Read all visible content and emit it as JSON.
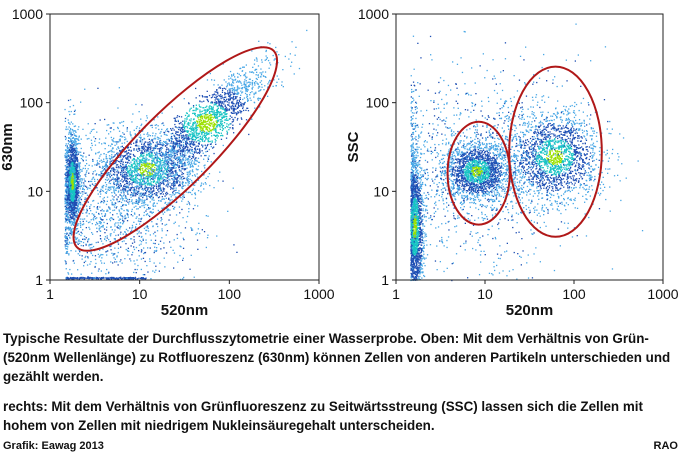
{
  "chart_data": [
    {
      "type": "scatter",
      "title": "",
      "xlabel": "520nm",
      "ylabel": "630nm",
      "xscale": "log",
      "yscale": "log",
      "xlim": [
        1,
        1000
      ],
      "ylim": [
        1,
        1000
      ],
      "xticks": [
        "1",
        "10",
        "100",
        "1000"
      ],
      "yticks": [
        "1",
        "10",
        "100",
        "1000"
      ],
      "clusters": [
        {
          "center": [
            1.75,
            13
          ],
          "spread": [
            0.04,
            0.28
          ],
          "density": "very high"
        },
        {
          "center": [
            12,
            18
          ],
          "spread": [
            0.28,
            0.22
          ],
          "density": "high"
        },
        {
          "center": [
            55,
            60
          ],
          "spread": [
            0.32,
            0.28
          ],
          "density": "high",
          "correlated": true
        },
        {
          "center": [
            5,
            6
          ],
          "spread": [
            0.45,
            0.45
          ],
          "density": "low background"
        }
      ],
      "ellipses": [
        {
          "center": [
            25,
            30
          ],
          "semi_axes_decades": [
            1.55,
            0.42
          ],
          "angle_deg": 45,
          "color": "#b01818"
        }
      ]
    },
    {
      "type": "scatter",
      "title": "",
      "xlabel": "520nm",
      "ylabel": "SSC",
      "xscale": "log",
      "yscale": "log",
      "xlim": [
        1,
        1000
      ],
      "ylim": [
        1,
        1000
      ],
      "xticks": [
        "1",
        "10",
        "100",
        "1000"
      ],
      "yticks": [
        "1",
        "10",
        "100",
        "1000"
      ],
      "clusters": [
        {
          "center": [
            8,
            17
          ],
          "spread": [
            0.18,
            0.16
          ],
          "density": "high"
        },
        {
          "center": [
            60,
            25
          ],
          "spread": [
            0.26,
            0.25
          ],
          "density": "high"
        },
        {
          "center": [
            1.6,
            4
          ],
          "spread": [
            0.05,
            0.4
          ],
          "density": "high"
        },
        {
          "center": [
            8,
            20
          ],
          "spread": [
            0.6,
            0.55
          ],
          "density": "low background"
        }
      ],
      "ellipses": [
        {
          "center": [
            8.5,
            16
          ],
          "semi_axes_decades": [
            0.35,
            0.58
          ],
          "angle_deg": 0,
          "color": "#b01818"
        },
        {
          "center": [
            62,
            28
          ],
          "semi_axes_decades": [
            0.52,
            0.96
          ],
          "angle_deg": 0,
          "color": "#b01818"
        }
      ]
    }
  ],
  "caption": {
    "paragraph1": "Typische Resultate der Durchflusszytometrie einer Wasserprobe. Oben: Mit dem Verhältnis von Grün- (520nm Wellenlänge) zu Rotfluoreszenz (630nm) können Zellen von anderen Partikeln unterschieden und gezählt werden.",
    "paragraph2": "rechts: Mit dem Verhältnis von Grünfluoreszenz zu Seitwärtsstreung (SSC) lassen sich die Zellen mit hohem von Zellen mit niedrigem Nukleinsäuregehalt unterscheiden.",
    "credit": "Grafik: Eawag 2013",
    "initials": "RAO"
  },
  "colors": {
    "ellipse": "#b01818",
    "density_low": "#4aa8e6",
    "density_mid": "#1e4fb4",
    "density_high": "#17c4c4",
    "density_peak": "#9be000"
  }
}
